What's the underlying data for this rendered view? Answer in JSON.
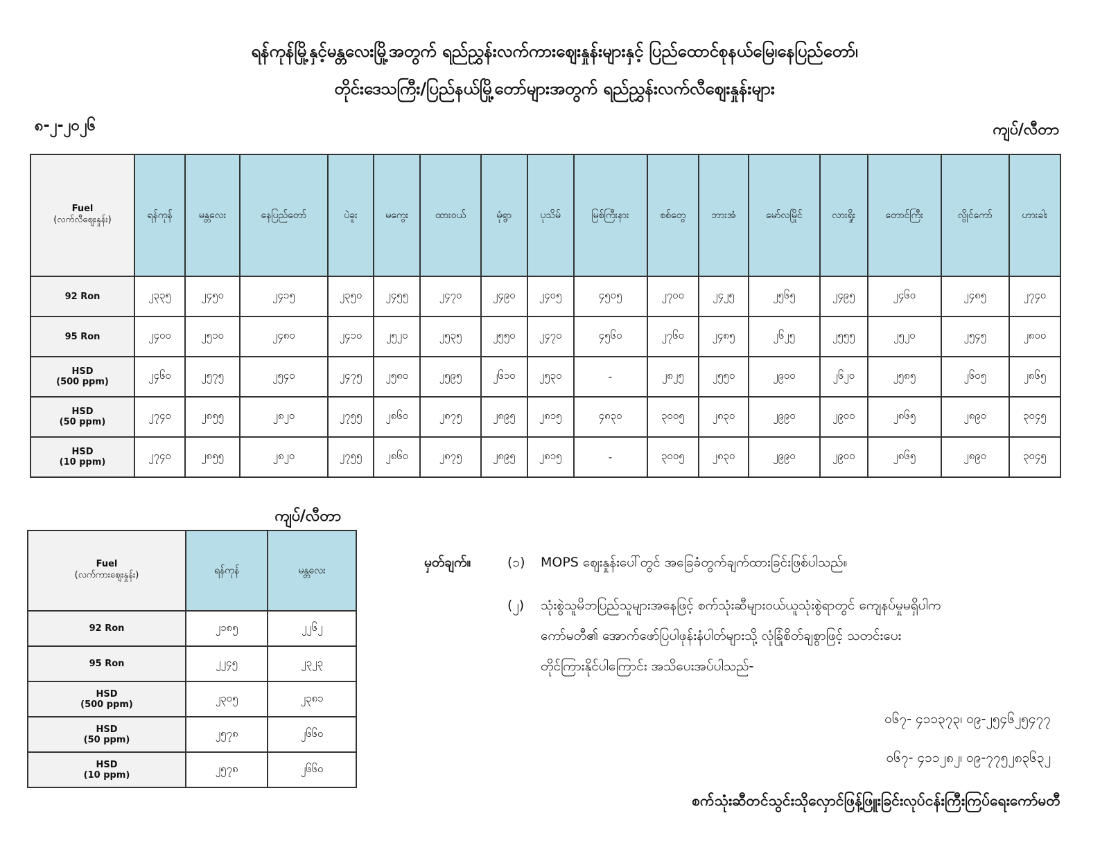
{
  "title_line1": "ရန်ကုန်မြို့နှင့်မန္တလေးမြို့အတွက် ရည်ညွှန်းလက်ကားဈေးနှုန်းများနှင့် ပြည်ထောင်စုနယ်မြေ၊နေပြည်တော်၊",
  "title_line2": "တိုင်းဒေသကြီး/ပြည်နယ်မြို့တော်များအတွက် ရည်ညွှန်းလက်လီဈေးနှုန်းများ",
  "date": "၈-၂-၂၀၂၆",
  "unit": "ကျပ်/လီတာ",
  "retail": {
    "fuel_header": "Fuel",
    "fuel_subheader": "(လက်လီဈေးနှုန်း)",
    "cities": [
      "ရန်ကုန်",
      "မန္တလေး",
      "နေပြည်တော်",
      "ပဲခူး",
      "မကွေး",
      "ထားဝယ်",
      "မုံရွာ",
      "ပုသိမ်",
      "မြစ်ကြီးနား",
      "စစ်တွေ",
      "ဘားအံ",
      "မော်လမြိုင်",
      "လားရှိုး",
      "တောင်ကြီး",
      "လွိုင်ကော်",
      "ဟားခါး"
    ],
    "rows": [
      {
        "fuel": "92 Ron",
        "sub": "",
        "values": [
          "၂၃၃၅",
          "၂၄၅၀",
          "၂၄၁၅",
          "၂၃၅၀",
          "၂၄၅၅",
          "၂၄၇၀",
          "၂၄၉၀",
          "၂၄၀၅",
          "၄၅၀၅",
          "၂၇၀၀",
          "၂၄၂၅",
          "၂၅၆၅",
          "၂၄၉၅",
          "၂၄၆၀",
          "၂၄၈၅",
          "၂၇၄၀"
        ]
      },
      {
        "fuel": "95 Ron",
        "sub": "",
        "values": [
          "၂၄၀၀",
          "၂၅၁၀",
          "၂၄၈၀",
          "၂၄၁၀",
          "၂၅၂၀",
          "၂၅၃၅",
          "၂၅၅၀",
          "၂၄၇၀",
          "၄၅၆၀",
          "၂၇၆၀",
          "၂၄၈၅",
          "၂၆၂၅",
          "၂၅၅၅",
          "၂၅၂၀",
          "၂၅၄၅",
          "၂၈၀၀"
        ]
      },
      {
        "fuel": "HSD",
        "sub": "(500 ppm)",
        "values": [
          "၂၄၆၀",
          "၂၅၇၅",
          "၂၅၄၀",
          "၂၄၇၅",
          "၂၅၈၀",
          "၂၅၉၅",
          "၂၆၁၀",
          "၂၅၃၀",
          "-",
          "၂၈၂၅",
          "၂၅၅၀",
          "၂၉၀၀",
          "၂၆၂၀",
          "၂၅၈၅",
          "၂၆၀၅",
          "၂၈၆၅"
        ]
      },
      {
        "fuel": "HSD",
        "sub": "(50 ppm)",
        "values": [
          "၂၇၄၀",
          "၂၈၅၅",
          "၂၈၂၀",
          "၂၇၅၅",
          "၂၈၆၀",
          "၂၈၇၅",
          "၂၈၉၅",
          "၂၈၁၅",
          "၄၈၃၀",
          "၃၀၀၅",
          "၂၈၃၀",
          "၂၉၉၀",
          "၂၉၀၀",
          "၂၈၆၅",
          "၂၈၉၀",
          "၃၀၄၅"
        ]
      },
      {
        "fuel": "HSD",
        "sub": "(10 ppm)",
        "values": [
          "၂၇၄၀",
          "၂၈၅၅",
          "၂၈၂၀",
          "၂၇၅၅",
          "၂၈၆၀",
          "၂၈၇၅",
          "၂၈၉၅",
          "၂၈၁၅",
          "-",
          "၃၀၀၅",
          "၂၈၃၀",
          "၂၉၉၀",
          "၂၉၀၀",
          "၂၈၆၅",
          "၂၈၉၀",
          "၃၀၄၅"
        ]
      }
    ]
  },
  "wholesale": {
    "unit": "ကျပ်/လီတာ",
    "fuel_header": "Fuel",
    "fuel_subheader": "(လက်ကားဈေးနှုန်း)",
    "cities": [
      "ရန်ကုန်",
      "မန္တလေး"
    ],
    "rows": [
      {
        "fuel": "92 Ron",
        "sub": "",
        "values": [
          "၂၁၈၅",
          "၂၂၆၂"
        ]
      },
      {
        "fuel": "95 Ron",
        "sub": "",
        "values": [
          "၂၂၄၅",
          "၂၃၂၃"
        ]
      },
      {
        "fuel": "HSD",
        "sub": "(500 ppm)",
        "values": [
          "၂၃၀၅",
          "၂၃၈၁"
        ]
      },
      {
        "fuel": "HSD",
        "sub": "(50 ppm)",
        "values": [
          "၂၅၇၈",
          "၂၆၆၀"
        ]
      },
      {
        "fuel": "HSD",
        "sub": "(10 ppm)",
        "values": [
          "၂၅၇၈",
          "၂၆၆၀"
        ]
      }
    ]
  },
  "notes": {
    "label": "မှတ်ချက်။",
    "n1_num": "(၁)",
    "n1": "MOPS ဈေးနှုန်းပေါ်တွင် အခြေခံတွက်ချက်ထားခြင်းဖြစ်ပါသည်။",
    "n2_num": "(၂)",
    "n2_l1": "သုံးစွဲသူမိဘပြည်သူများအနေဖြင့် စက်သုံးဆီများဝယ်ယူသုံးစွဲရာတွင် ကျေနပ်မှုမရှိပါက",
    "n2_l2": "ကော်မတီ၏ အောက်ဖော်ပြပါဖုန်းနံပါတ်များသို့ လုံခြုံစိတ်ချစွာဖြင့် သတင်းပေး",
    "n2_l3": "တိုင်ကြားနိုင်ပါကြောင်း အသိပေးအပ်ပါသည်-",
    "phone1": "၀၆၇- ၄၁၁၃၇၃၊ ၀၉-၂၅၄၆၂၅၄၇၇",
    "phone2": "၀၆၇- ၄၁၁၂၈၂၊ ၀၉-၇၇၅၂၈၃၆၃၂",
    "signature": "စက်သုံးဆီတင်သွင်းသိုလှောင်ဖြန့်ဖြူးခြင်းလုပ်ငန်းကြီးကြပ်ရေးကော်မတီ"
  }
}
